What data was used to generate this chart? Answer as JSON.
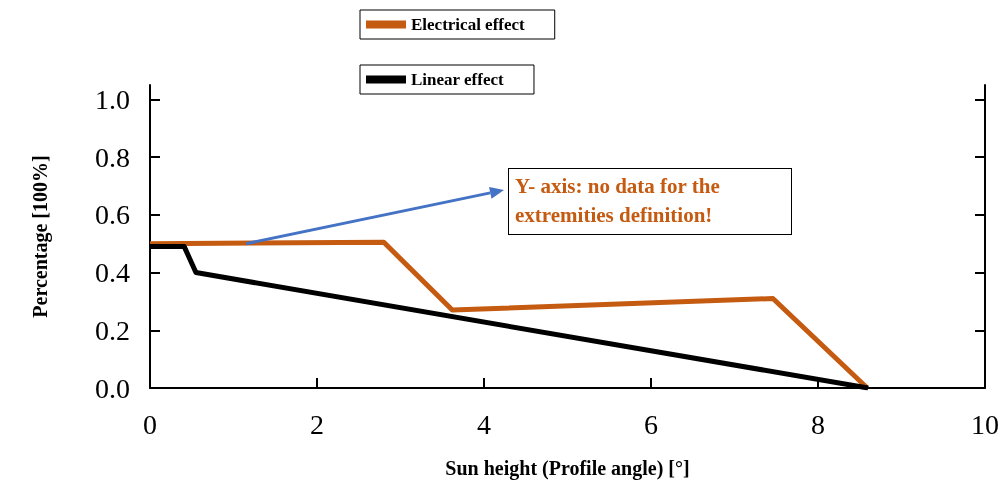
{
  "chart_data": {
    "type": "line",
    "xlabel": "Sun height (Profile angle) [°]",
    "ylabel": "Percentage [100%]",
    "xlim": [
      0,
      10
    ],
    "xticks": [
      0,
      2,
      4,
      6,
      8,
      10
    ],
    "ylim": [
      0,
      1.05
    ],
    "yticks": [
      {
        "value": 0,
        "label": "0.0"
      },
      {
        "value": 0.2,
        "label": "0.2"
      },
      {
        "value": 0.4,
        "label": "0.4"
      },
      {
        "value": 0.6,
        "label": "0.6"
      },
      {
        "value": 0.8,
        "label": "0.8"
      },
      {
        "value": 1,
        "label": "1.0"
      }
    ],
    "series": [
      {
        "name": "Electrical effect",
        "color": "#c55a11",
        "x": [
          0,
          2.8,
          3.62,
          7.46,
          8.59
        ],
        "values": [
          0.5,
          0.505,
          0.27,
          0.31,
          0
        ]
      },
      {
        "name": "Linear effect",
        "color": "#000000",
        "x": [
          0,
          0.41,
          0.55,
          8.6
        ],
        "values": [
          0.49,
          0.49,
          0.4,
          0
        ]
      }
    ],
    "annotations": [
      {
        "text": "Y- axis: no data for the extremities definition!",
        "x": 1.15,
        "y": 0.5
      }
    ],
    "grid": false,
    "legend": "top",
    "marker": "none",
    "line_style": "solid"
  }
}
